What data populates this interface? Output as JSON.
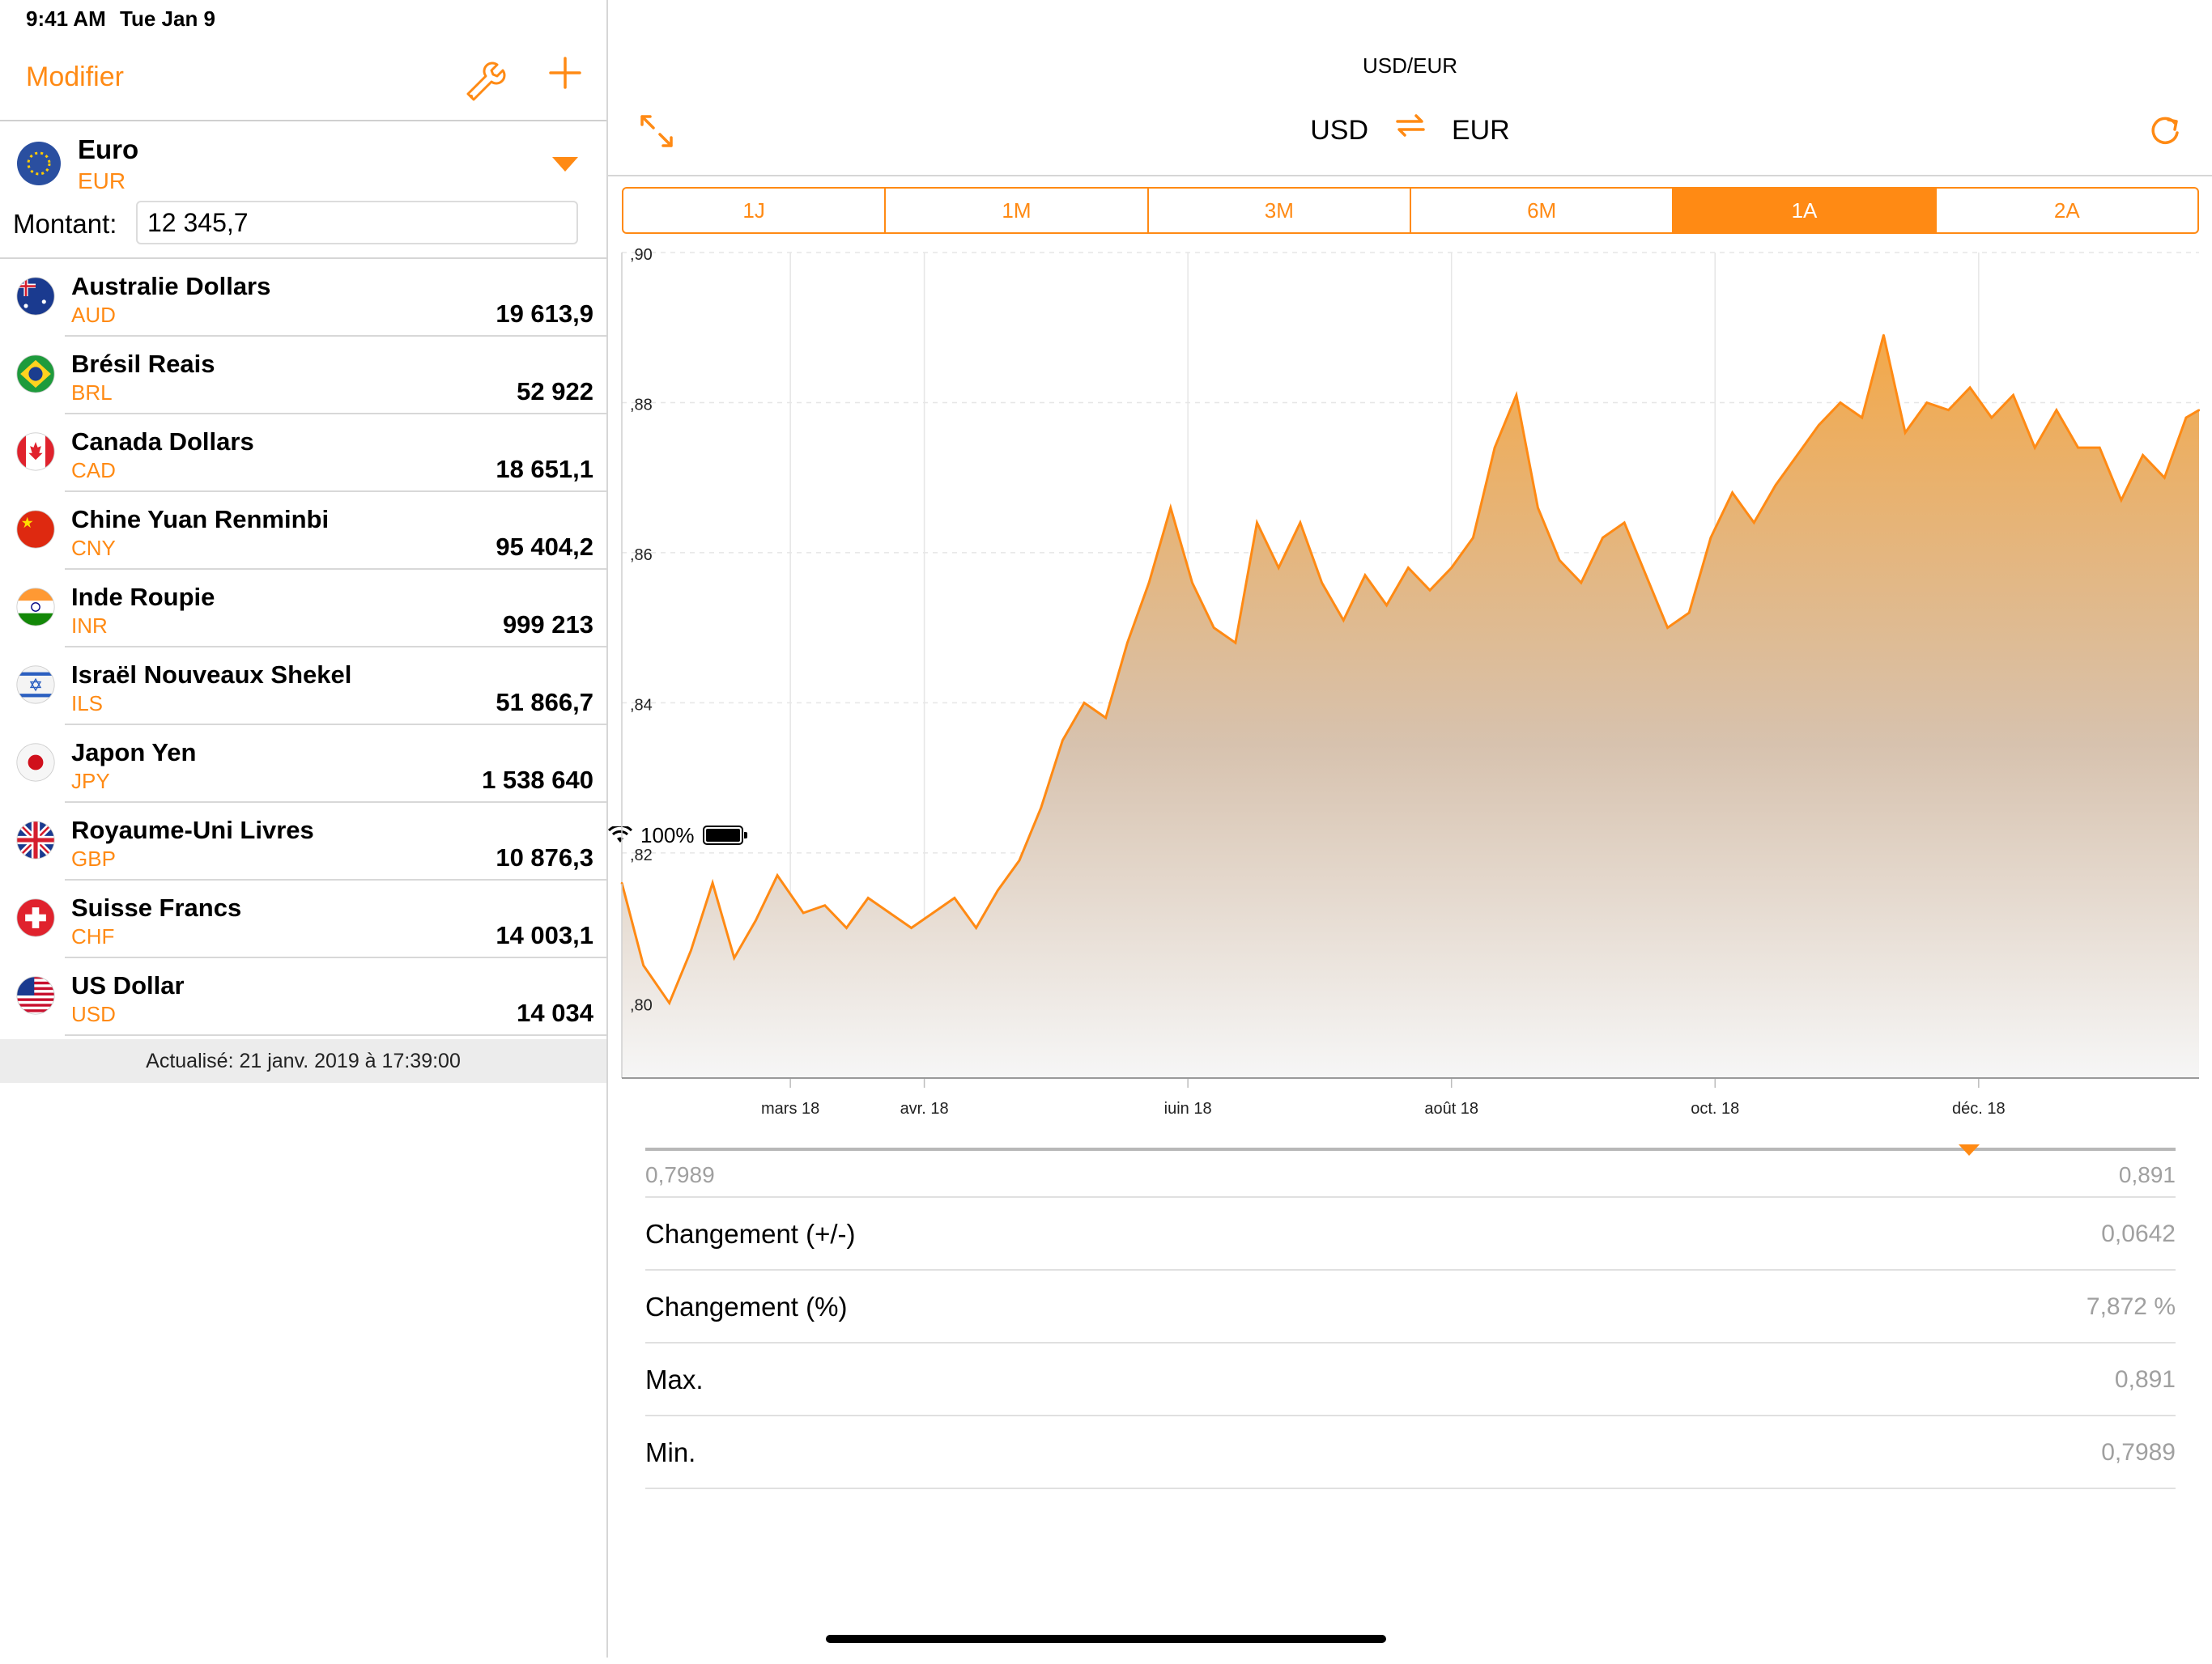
{
  "status": {
    "time": "9:41 AM",
    "date": "Tue Jan 9",
    "battery": "100%"
  },
  "left": {
    "edit_label": "Modifier",
    "base": {
      "name": "Euro",
      "code": "EUR",
      "amount_label": "Montant:",
      "amount": "12 345,7"
    },
    "rows": [
      {
        "name": "Australie Dollars",
        "code": "AUD",
        "value": "19 613,9",
        "flag": "au"
      },
      {
        "name": "Brésil Reais",
        "code": "BRL",
        "value": "52 922",
        "flag": "br"
      },
      {
        "name": "Canada Dollars",
        "code": "CAD",
        "value": "18 651,1",
        "flag": "ca"
      },
      {
        "name": "Chine Yuan Renminbi",
        "code": "CNY",
        "value": "95 404,2",
        "flag": "cn"
      },
      {
        "name": "Inde Roupie",
        "code": "INR",
        "value": "999 213",
        "flag": "in"
      },
      {
        "name": "Israël Nouveaux Shekel",
        "code": "ILS",
        "value": "51 866,7",
        "flag": "il"
      },
      {
        "name": "Japon Yen",
        "code": "JPY",
        "value": "1 538 640",
        "flag": "jp"
      },
      {
        "name": "Royaume-Uni Livres",
        "code": "GBP",
        "value": "10 876,3",
        "flag": "gb"
      },
      {
        "name": "Suisse Francs",
        "code": "CHF",
        "value": "14 003,1",
        "flag": "ch"
      },
      {
        "name": "US Dollar",
        "code": "USD",
        "value": "14 034",
        "flag": "us"
      }
    ],
    "updated": "Actualisé: 21 janv. 2019 à 17:39:00"
  },
  "right": {
    "title": "USD/EUR",
    "from": "USD",
    "to": "EUR",
    "ranges": [
      "1J",
      "1M",
      "3M",
      "6M",
      "1A",
      "2A"
    ],
    "active_range": "1A",
    "range_min": "0,7989",
    "range_max": "0,891",
    "marker_fraction": 0.865,
    "stats": [
      {
        "label": "Changement (+/-)",
        "value": "0,0642"
      },
      {
        "label": "Changement (%)",
        "value": "7,872 %"
      },
      {
        "label": "Max.",
        "value": "0,891"
      },
      {
        "label": "Min.",
        "value": "0,7989"
      }
    ]
  },
  "colors": {
    "accent": "#ff8a14",
    "muted": "#a0a0a0",
    "footer_bg": "#ececec"
  },
  "chart_data": {
    "type": "area",
    "series_color": "#ff8a14",
    "ylim": [
      0.79,
      0.9
    ],
    "y_ticks": [
      {
        "value": 0.9,
        "label": ",90"
      },
      {
        "value": 0.88,
        "label": ",88"
      },
      {
        "value": 0.86,
        "label": ",86"
      },
      {
        "value": 0.84,
        "label": ",84"
      },
      {
        "value": 0.82,
        "label": ",82"
      },
      {
        "value": 0.8,
        "label": ",80"
      }
    ],
    "xlim": [
      "2018-01-21",
      "2019-01-21"
    ],
    "x_ticks": [
      {
        "date": "2018-03-01",
        "label": "mars 18"
      },
      {
        "date": "2018-04-01",
        "label": "avr. 18"
      },
      {
        "date": "2018-06-01",
        "label": "juin 18"
      },
      {
        "date": "2018-08-01",
        "label": "août 18"
      },
      {
        "date": "2018-10-01",
        "label": "oct. 18"
      },
      {
        "date": "2018-12-01",
        "label": "déc. 18"
      }
    ],
    "grid": true,
    "points": [
      [
        "2018-01-21",
        0.816
      ],
      [
        "2018-01-26",
        0.805
      ],
      [
        "2018-02-01",
        0.8
      ],
      [
        "2018-02-06",
        0.807
      ],
      [
        "2018-02-11",
        0.816
      ],
      [
        "2018-02-16",
        0.806
      ],
      [
        "2018-02-21",
        0.811
      ],
      [
        "2018-02-26",
        0.817
      ],
      [
        "2018-03-04",
        0.812
      ],
      [
        "2018-03-09",
        0.813
      ],
      [
        "2018-03-14",
        0.81
      ],
      [
        "2018-03-19",
        0.814
      ],
      [
        "2018-03-24",
        0.812
      ],
      [
        "2018-03-29",
        0.81
      ],
      [
        "2018-04-03",
        0.812
      ],
      [
        "2018-04-08",
        0.814
      ],
      [
        "2018-04-13",
        0.81
      ],
      [
        "2018-04-18",
        0.815
      ],
      [
        "2018-04-23",
        0.819
      ],
      [
        "2018-04-28",
        0.826
      ],
      [
        "2018-05-03",
        0.835
      ],
      [
        "2018-05-08",
        0.84
      ],
      [
        "2018-05-13",
        0.838
      ],
      [
        "2018-05-18",
        0.848
      ],
      [
        "2018-05-23",
        0.856
      ],
      [
        "2018-05-28",
        0.866
      ],
      [
        "2018-06-02",
        0.856
      ],
      [
        "2018-06-07",
        0.85
      ],
      [
        "2018-06-12",
        0.848
      ],
      [
        "2018-06-17",
        0.864
      ],
      [
        "2018-06-22",
        0.858
      ],
      [
        "2018-06-27",
        0.864
      ],
      [
        "2018-07-02",
        0.856
      ],
      [
        "2018-07-07",
        0.851
      ],
      [
        "2018-07-12",
        0.857
      ],
      [
        "2018-07-17",
        0.853
      ],
      [
        "2018-07-22",
        0.858
      ],
      [
        "2018-07-27",
        0.855
      ],
      [
        "2018-08-01",
        0.858
      ],
      [
        "2018-08-06",
        0.862
      ],
      [
        "2018-08-11",
        0.874
      ],
      [
        "2018-08-16",
        0.881
      ],
      [
        "2018-08-21",
        0.866
      ],
      [
        "2018-08-26",
        0.859
      ],
      [
        "2018-08-31",
        0.856
      ],
      [
        "2018-09-05",
        0.862
      ],
      [
        "2018-09-10",
        0.864
      ],
      [
        "2018-09-15",
        0.857
      ],
      [
        "2018-09-20",
        0.85
      ],
      [
        "2018-09-25",
        0.852
      ],
      [
        "2018-09-30",
        0.862
      ],
      [
        "2018-10-05",
        0.868
      ],
      [
        "2018-10-10",
        0.864
      ],
      [
        "2018-10-15",
        0.869
      ],
      [
        "2018-10-20",
        0.873
      ],
      [
        "2018-10-25",
        0.877
      ],
      [
        "2018-10-30",
        0.88
      ],
      [
        "2018-11-04",
        0.878
      ],
      [
        "2018-11-09",
        0.889
      ],
      [
        "2018-11-14",
        0.876
      ],
      [
        "2018-11-19",
        0.88
      ],
      [
        "2018-11-24",
        0.879
      ],
      [
        "2018-11-29",
        0.882
      ],
      [
        "2018-12-04",
        0.878
      ],
      [
        "2018-12-09",
        0.881
      ],
      [
        "2018-12-14",
        0.874
      ],
      [
        "2018-12-19",
        0.879
      ],
      [
        "2018-12-24",
        0.874
      ],
      [
        "2018-12-29",
        0.874
      ],
      [
        "2019-01-03",
        0.867
      ],
      [
        "2019-01-08",
        0.873
      ],
      [
        "2019-01-13",
        0.87
      ],
      [
        "2019-01-18",
        0.878
      ],
      [
        "2019-01-21",
        0.879
      ]
    ]
  }
}
